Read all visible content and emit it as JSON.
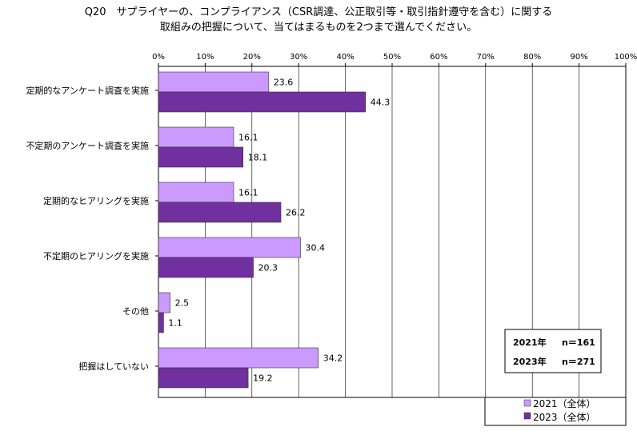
{
  "title_line1": "Q20　サプライヤーの、コンプライアンス（CSR調達、公正取引等・取引指針遵守を含む）に関する",
  "title_line2": "取組みの把握について、当てはまるものを2つまで選んでください。",
  "chart_data": {
    "type": "bar",
    "orientation": "horizontal",
    "categories": [
      "定期的なアンケート調査を実施",
      "不定期のアンケート調査を実施",
      "定期的なヒアリングを実施",
      "不定期のヒアリングを実施",
      "その他",
      "把握はしていない"
    ],
    "series": [
      {
        "name": "2021（全体）",
        "values": [
          23.6,
          16.1,
          16.1,
          30.4,
          2.5,
          34.2
        ]
      },
      {
        "name": "2023（全体）",
        "values": [
          44.3,
          18.1,
          26.2,
          20.3,
          1.1,
          19.2
        ]
      }
    ],
    "xlim": [
      0,
      100
    ],
    "x_ticks": [
      "0%",
      "10%",
      "20%",
      "30%",
      "40%",
      "50%",
      "60%",
      "70%",
      "80%",
      "90%",
      "100%"
    ],
    "grid": true,
    "legend_position": "bottom-right",
    "annotation": [
      {
        "year": "2021年",
        "n": "n＝161"
      },
      {
        "year": "2023年",
        "n": "n＝271"
      }
    ]
  },
  "colors": {
    "series_2021": "#cc99ff",
    "series_2023": "#7030a0",
    "grid": "#000000",
    "bar_border": "#333333"
  }
}
